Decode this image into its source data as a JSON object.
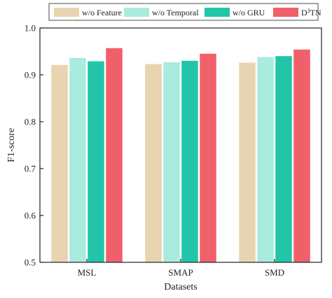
{
  "chart_data": {
    "type": "bar",
    "title": "",
    "xlabel": "Datasets",
    "ylabel": "F1-score",
    "ylim": [
      0.5,
      1.0
    ],
    "yticks": [
      "0.5",
      "0.6",
      "0.7",
      "0.8",
      "0.9",
      "1.0"
    ],
    "grid": false,
    "legend_position": "top",
    "categories": [
      "MSL",
      "SMAP",
      "SMD"
    ],
    "series": [
      {
        "name": "w/o Feature",
        "color": "#e8d4b0",
        "values": [
          0.921,
          0.923,
          0.926
        ]
      },
      {
        "name": "w/o Temporal",
        "color": "#a9ebdd",
        "values": [
          0.936,
          0.927,
          0.938
        ]
      },
      {
        "name": "w/o GRU",
        "color": "#22c5a8",
        "values": [
          0.929,
          0.93,
          0.94
        ]
      },
      {
        "name": "D3TN",
        "color": "#f0606a",
        "values": [
          0.957,
          0.945,
          0.954
        ]
      }
    ]
  }
}
